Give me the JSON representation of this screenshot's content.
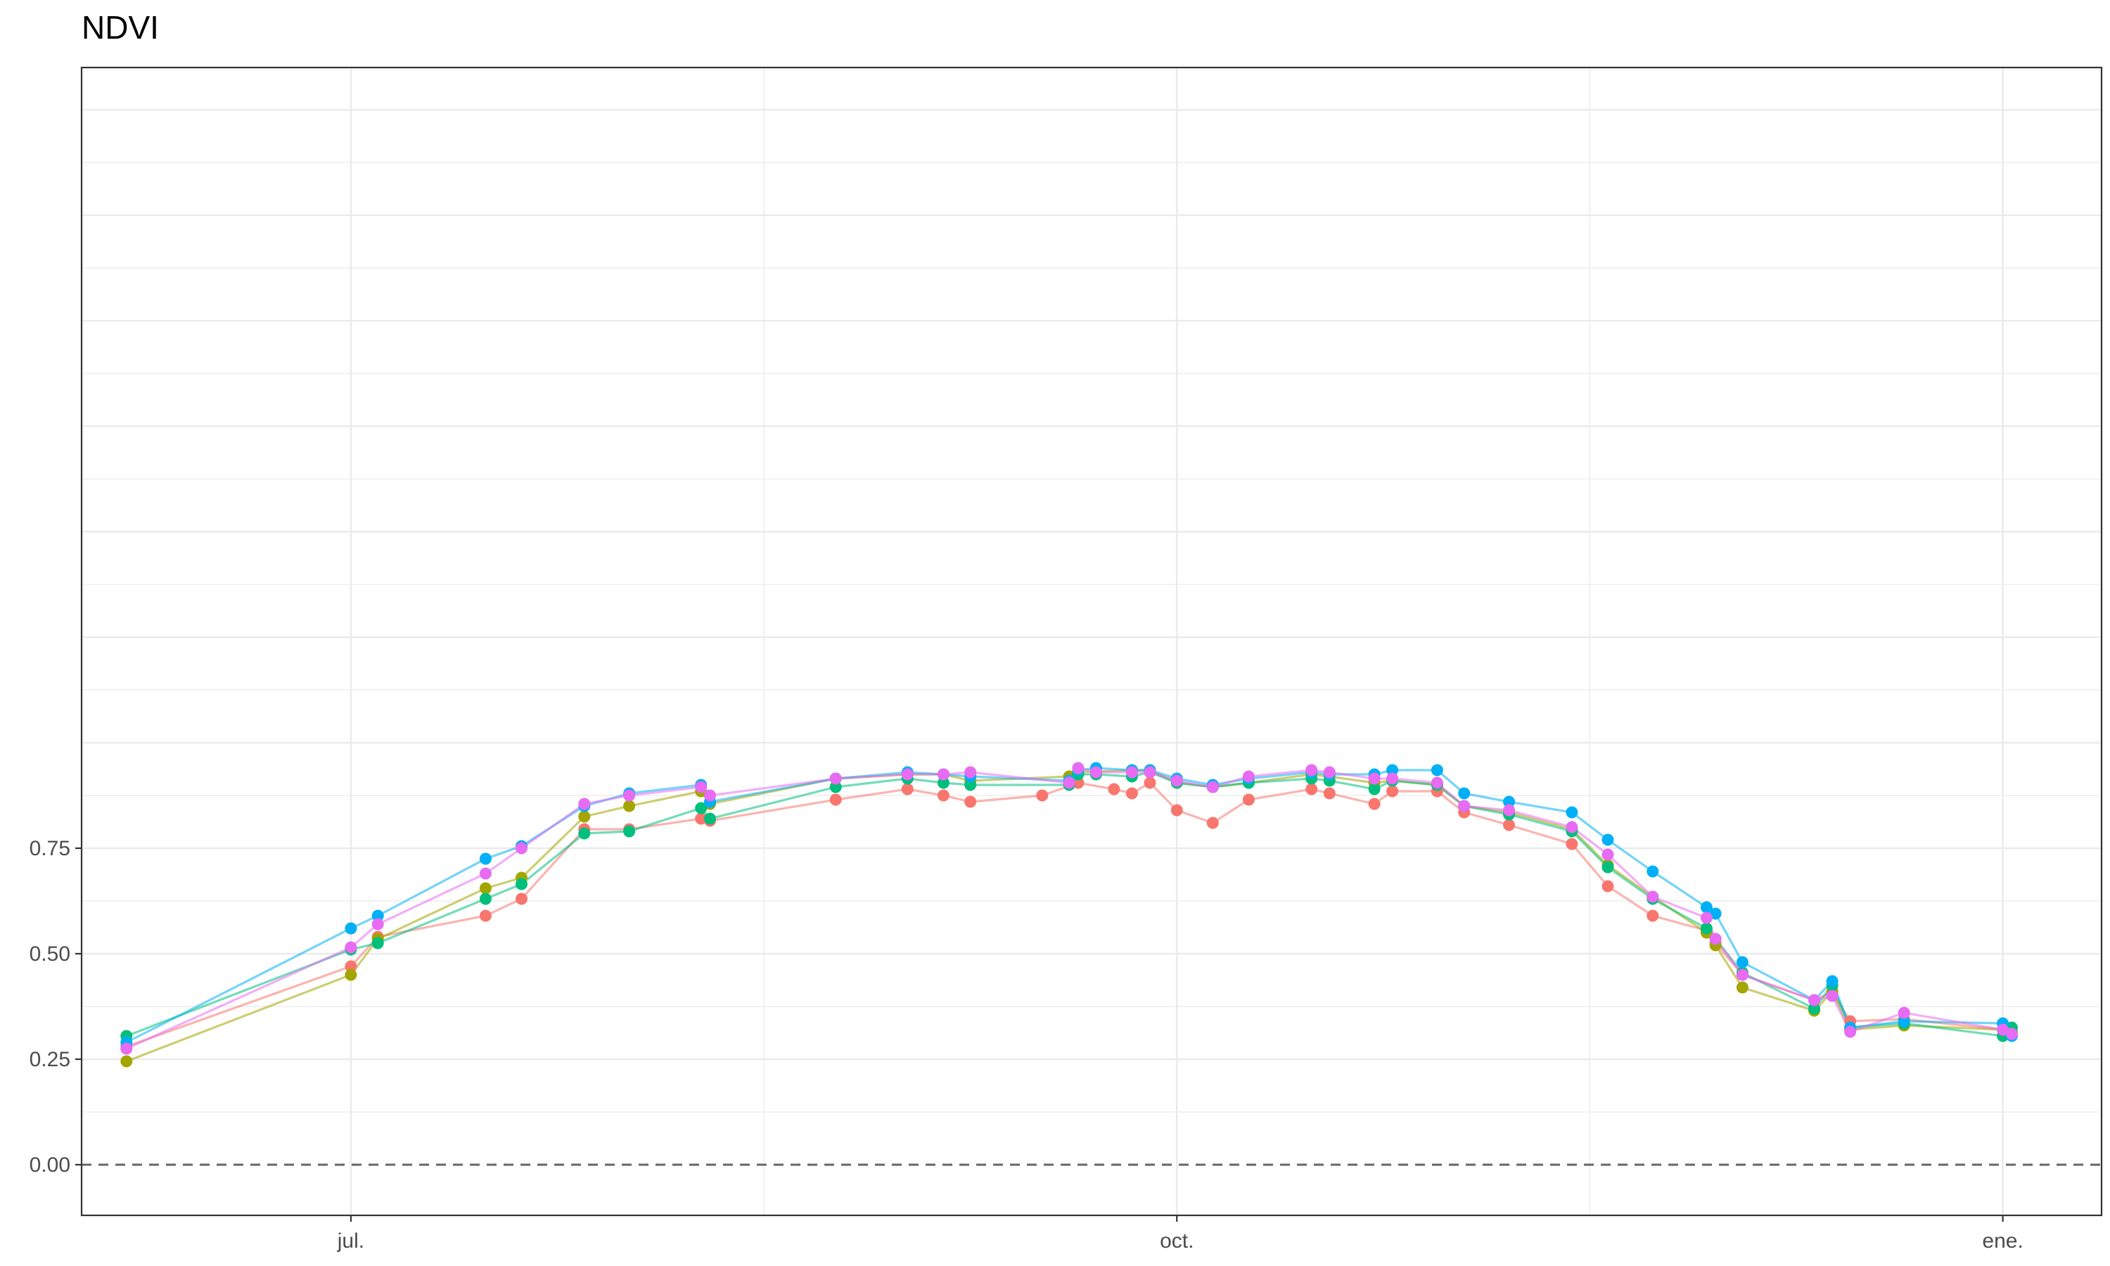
{
  "chart_data": {
    "type": "line",
    "title": "NDVI",
    "xlabel": "",
    "ylabel": "",
    "x_axis_type": "date",
    "xlim": [
      "2022-06-01",
      "2023-01-12"
    ],
    "ylim": [
      -0.12,
      2.6
    ],
    "x_ticks": [
      {
        "date": "2022-07-01",
        "label": "jul."
      },
      {
        "date": "2022-10-01",
        "label": "oct."
      },
      {
        "date": "2023-01-01",
        "label": "ene."
      }
    ],
    "y_ticks": [
      {
        "value": 0.0,
        "label": "0.00"
      },
      {
        "value": 0.25,
        "label": "0.25"
      },
      {
        "value": 0.5,
        "label": "0.50"
      },
      {
        "value": 0.75,
        "label": "0.75"
      }
    ],
    "grid": true,
    "reference_line": {
      "y": 0,
      "style": "dashed",
      "color": "#666666"
    },
    "legend": "none",
    "series": [
      {
        "color": "#F8766D",
        "points": [
          [
            "2022-06-06",
            0.28
          ],
          [
            "2022-07-01",
            0.47
          ],
          [
            "2022-07-04",
            0.54
          ],
          [
            "2022-07-16",
            0.59
          ],
          [
            "2022-07-20",
            0.63
          ],
          [
            "2022-07-27",
            0.795
          ],
          [
            "2022-08-01",
            0.795
          ],
          [
            "2022-08-09",
            0.82
          ],
          [
            "2022-08-10",
            0.815
          ],
          [
            "2022-08-24",
            0.865
          ],
          [
            "2022-09-01",
            0.89
          ],
          [
            "2022-09-05",
            0.875
          ],
          [
            "2022-09-08",
            0.86
          ],
          [
            "2022-09-16",
            0.875
          ],
          [
            "2022-09-20",
            0.905
          ],
          [
            "2022-09-24",
            0.89
          ],
          [
            "2022-09-26",
            0.88
          ],
          [
            "2022-09-28",
            0.905
          ],
          [
            "2022-10-01",
            0.84
          ],
          [
            "2022-10-05",
            0.81
          ],
          [
            "2022-10-09",
            0.865
          ],
          [
            "2022-10-16",
            0.89
          ],
          [
            "2022-10-18",
            0.88
          ],
          [
            "2022-10-23",
            0.855
          ],
          [
            "2022-10-25",
            0.885
          ],
          [
            "2022-10-30",
            0.885
          ],
          [
            "2022-11-02",
            0.835
          ],
          [
            "2022-11-07",
            0.805
          ],
          [
            "2022-11-14",
            0.76
          ],
          [
            "2022-11-18",
            0.66
          ],
          [
            "2022-11-23",
            0.59
          ],
          [
            "2022-11-29",
            0.555
          ],
          [
            "2022-11-30",
            0.525
          ],
          [
            "2022-12-03",
            0.45
          ],
          [
            "2022-12-11",
            0.39
          ],
          [
            "2022-12-13",
            0.41
          ],
          [
            "2022-12-15",
            0.34
          ],
          [
            "2022-12-21",
            0.345
          ],
          [
            "2023-01-01",
            0.32
          ],
          [
            "2023-01-02",
            0.315
          ]
        ]
      },
      {
        "color": "#A3A500",
        "points": [
          [
            "2022-06-06",
            0.245
          ],
          [
            "2022-07-01",
            0.45
          ],
          [
            "2022-07-04",
            0.535
          ],
          [
            "2022-07-16",
            0.655
          ],
          [
            "2022-07-20",
            0.68
          ],
          [
            "2022-07-27",
            0.825
          ],
          [
            "2022-08-01",
            0.85
          ],
          [
            "2022-08-09",
            0.885
          ],
          [
            "2022-08-10",
            0.855
          ],
          [
            "2022-08-24",
            0.915
          ],
          [
            "2022-09-01",
            0.925
          ],
          [
            "2022-09-05",
            0.925
          ],
          [
            "2022-09-08",
            0.91
          ],
          [
            "2022-09-19",
            0.92
          ],
          [
            "2022-09-20",
            0.93
          ],
          [
            "2022-09-26",
            0.935
          ],
          [
            "2022-09-28",
            0.935
          ],
          [
            "2022-10-01",
            0.905
          ],
          [
            "2022-10-05",
            0.895
          ],
          [
            "2022-10-09",
            0.905
          ],
          [
            "2022-10-16",
            0.925
          ],
          [
            "2022-10-18",
            0.92
          ],
          [
            "2022-10-23",
            0.905
          ],
          [
            "2022-10-25",
            0.91
          ],
          [
            "2022-10-30",
            0.9
          ],
          [
            "2022-11-02",
            0.85
          ],
          [
            "2022-11-07",
            0.835
          ],
          [
            "2022-11-14",
            0.795
          ],
          [
            "2022-11-18",
            0.71
          ],
          [
            "2022-11-23",
            0.635
          ],
          [
            "2022-11-29",
            0.55
          ],
          [
            "2022-11-30",
            0.52
          ],
          [
            "2022-12-03",
            0.42
          ],
          [
            "2022-12-11",
            0.365
          ],
          [
            "2022-12-13",
            0.41
          ],
          [
            "2022-12-15",
            0.32
          ],
          [
            "2022-12-21",
            0.33
          ],
          [
            "2023-01-01",
            0.32
          ],
          [
            "2023-01-02",
            0.315
          ]
        ]
      },
      {
        "color": "#00BF7D",
        "points": [
          [
            "2022-06-06",
            0.305
          ],
          [
            "2022-07-01",
            0.51
          ],
          [
            "2022-07-04",
            0.525
          ],
          [
            "2022-07-16",
            0.63
          ],
          [
            "2022-07-20",
            0.665
          ],
          [
            "2022-07-27",
            0.785
          ],
          [
            "2022-08-01",
            0.79
          ],
          [
            "2022-08-09",
            0.845
          ],
          [
            "2022-08-10",
            0.82
          ],
          [
            "2022-08-24",
            0.895
          ],
          [
            "2022-09-01",
            0.915
          ],
          [
            "2022-09-05",
            0.905
          ],
          [
            "2022-09-08",
            0.9
          ],
          [
            "2022-09-19",
            0.9
          ],
          [
            "2022-09-20",
            0.925
          ],
          [
            "2022-09-22",
            0.925
          ],
          [
            "2022-09-26",
            0.92
          ],
          [
            "2022-09-28",
            0.93
          ],
          [
            "2022-10-01",
            0.905
          ],
          [
            "2022-10-05",
            0.895
          ],
          [
            "2022-10-09",
            0.905
          ],
          [
            "2022-10-16",
            0.915
          ],
          [
            "2022-10-18",
            0.91
          ],
          [
            "2022-10-23",
            0.89
          ],
          [
            "2022-10-25",
            0.91
          ],
          [
            "2022-10-30",
            0.9
          ],
          [
            "2022-11-02",
            0.85
          ],
          [
            "2022-11-07",
            0.83
          ],
          [
            "2022-11-14",
            0.79
          ],
          [
            "2022-11-18",
            0.705
          ],
          [
            "2022-11-23",
            0.63
          ],
          [
            "2022-11-29",
            0.56
          ],
          [
            "2022-11-30",
            0.535
          ],
          [
            "2022-12-03",
            0.455
          ],
          [
            "2022-12-11",
            0.37
          ],
          [
            "2022-12-13",
            0.425
          ],
          [
            "2022-12-15",
            0.325
          ],
          [
            "2022-12-21",
            0.335
          ],
          [
            "2023-01-01",
            0.305
          ],
          [
            "2023-01-02",
            0.325
          ]
        ]
      },
      {
        "color": "#00B0F6",
        "points": [
          [
            "2022-06-06",
            0.29
          ],
          [
            "2022-07-01",
            0.56
          ],
          [
            "2022-07-04",
            0.59
          ],
          [
            "2022-07-16",
            0.725
          ],
          [
            "2022-07-20",
            0.755
          ],
          [
            "2022-07-27",
            0.85
          ],
          [
            "2022-08-01",
            0.88
          ],
          [
            "2022-08-09",
            0.9
          ],
          [
            "2022-08-10",
            0.86
          ],
          [
            "2022-08-24",
            0.915
          ],
          [
            "2022-09-01",
            0.93
          ],
          [
            "2022-09-05",
            0.925
          ],
          [
            "2022-09-08",
            0.92
          ],
          [
            "2022-09-19",
            0.91
          ],
          [
            "2022-09-20",
            0.935
          ],
          [
            "2022-09-22",
            0.94
          ],
          [
            "2022-09-26",
            0.935
          ],
          [
            "2022-09-28",
            0.935
          ],
          [
            "2022-10-01",
            0.915
          ],
          [
            "2022-10-05",
            0.9
          ],
          [
            "2022-10-09",
            0.915
          ],
          [
            "2022-10-16",
            0.93
          ],
          [
            "2022-10-18",
            0.925
          ],
          [
            "2022-10-23",
            0.925
          ],
          [
            "2022-10-25",
            0.935
          ],
          [
            "2022-10-30",
            0.935
          ],
          [
            "2022-11-02",
            0.88
          ],
          [
            "2022-11-07",
            0.86
          ],
          [
            "2022-11-14",
            0.835
          ],
          [
            "2022-11-18",
            0.77
          ],
          [
            "2022-11-23",
            0.695
          ],
          [
            "2022-11-29",
            0.61
          ],
          [
            "2022-11-30",
            0.595
          ],
          [
            "2022-12-03",
            0.48
          ],
          [
            "2022-12-11",
            0.39
          ],
          [
            "2022-12-13",
            0.435
          ],
          [
            "2022-12-15",
            0.325
          ],
          [
            "2022-12-21",
            0.34
          ],
          [
            "2023-01-01",
            0.335
          ],
          [
            "2023-01-02",
            0.305
          ]
        ]
      },
      {
        "color": "#E76BF3",
        "points": [
          [
            "2022-06-06",
            0.275
          ],
          [
            "2022-07-01",
            0.515
          ],
          [
            "2022-07-04",
            0.57
          ],
          [
            "2022-07-16",
            0.69
          ],
          [
            "2022-07-20",
            0.75
          ],
          [
            "2022-07-27",
            0.855
          ],
          [
            "2022-08-01",
            0.875
          ],
          [
            "2022-08-09",
            0.895
          ],
          [
            "2022-08-10",
            0.875
          ],
          [
            "2022-08-24",
            0.915
          ],
          [
            "2022-09-01",
            0.925
          ],
          [
            "2022-09-05",
            0.925
          ],
          [
            "2022-09-08",
            0.93
          ],
          [
            "2022-09-19",
            0.905
          ],
          [
            "2022-09-20",
            0.94
          ],
          [
            "2022-09-22",
            0.93
          ],
          [
            "2022-09-26",
            0.93
          ],
          [
            "2022-09-28",
            0.93
          ],
          [
            "2022-10-01",
            0.91
          ],
          [
            "2022-10-05",
            0.895
          ],
          [
            "2022-10-09",
            0.92
          ],
          [
            "2022-10-16",
            0.935
          ],
          [
            "2022-10-18",
            0.93
          ],
          [
            "2022-10-23",
            0.915
          ],
          [
            "2022-10-25",
            0.915
          ],
          [
            "2022-10-30",
            0.905
          ],
          [
            "2022-11-02",
            0.85
          ],
          [
            "2022-11-07",
            0.84
          ],
          [
            "2022-11-14",
            0.8
          ],
          [
            "2022-11-18",
            0.735
          ],
          [
            "2022-11-23",
            0.635
          ],
          [
            "2022-11-29",
            0.585
          ],
          [
            "2022-11-30",
            0.535
          ],
          [
            "2022-12-03",
            0.45
          ],
          [
            "2022-12-11",
            0.39
          ],
          [
            "2022-12-13",
            0.4
          ],
          [
            "2022-12-15",
            0.315
          ],
          [
            "2022-12-21",
            0.36
          ],
          [
            "2023-01-01",
            0.32
          ],
          [
            "2023-01-02",
            0.31
          ]
        ]
      }
    ]
  }
}
